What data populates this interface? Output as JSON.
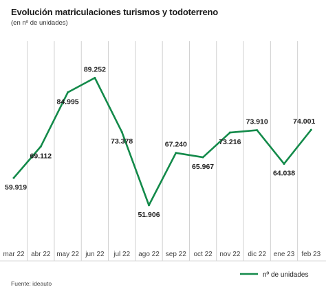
{
  "chart_data": {
    "type": "line",
    "title": "Evolución matriculaciones turismos y todoterreno",
    "subtitle": "(en nº de unidades)",
    "source": "Fuente: ideauto",
    "categories": [
      "mar 22",
      "abr 22",
      "may 22",
      "jun 22",
      "jul 22",
      "ago 22",
      "sep 22",
      "oct 22",
      "nov 22",
      "dic 22",
      "ene 23",
      "feb 23"
    ],
    "series": [
      {
        "name": "nº de unidades",
        "values": [
          59919,
          69112,
          84995,
          89252,
          73378,
          51906,
          67240,
          65967,
          73216,
          73910,
          64038,
          74001
        ],
        "labels": [
          "59.919",
          "69.112",
          "84.995",
          "89.252",
          "73.378",
          "51.906",
          "67.240",
          "65.967",
          "73.216",
          "73.910",
          "64.038",
          "74.001"
        ],
        "color": "#138a4a"
      }
    ],
    "ylim": [
      40000,
      100000
    ],
    "grid": "vertical",
    "legend_position": "bottom-right"
  }
}
